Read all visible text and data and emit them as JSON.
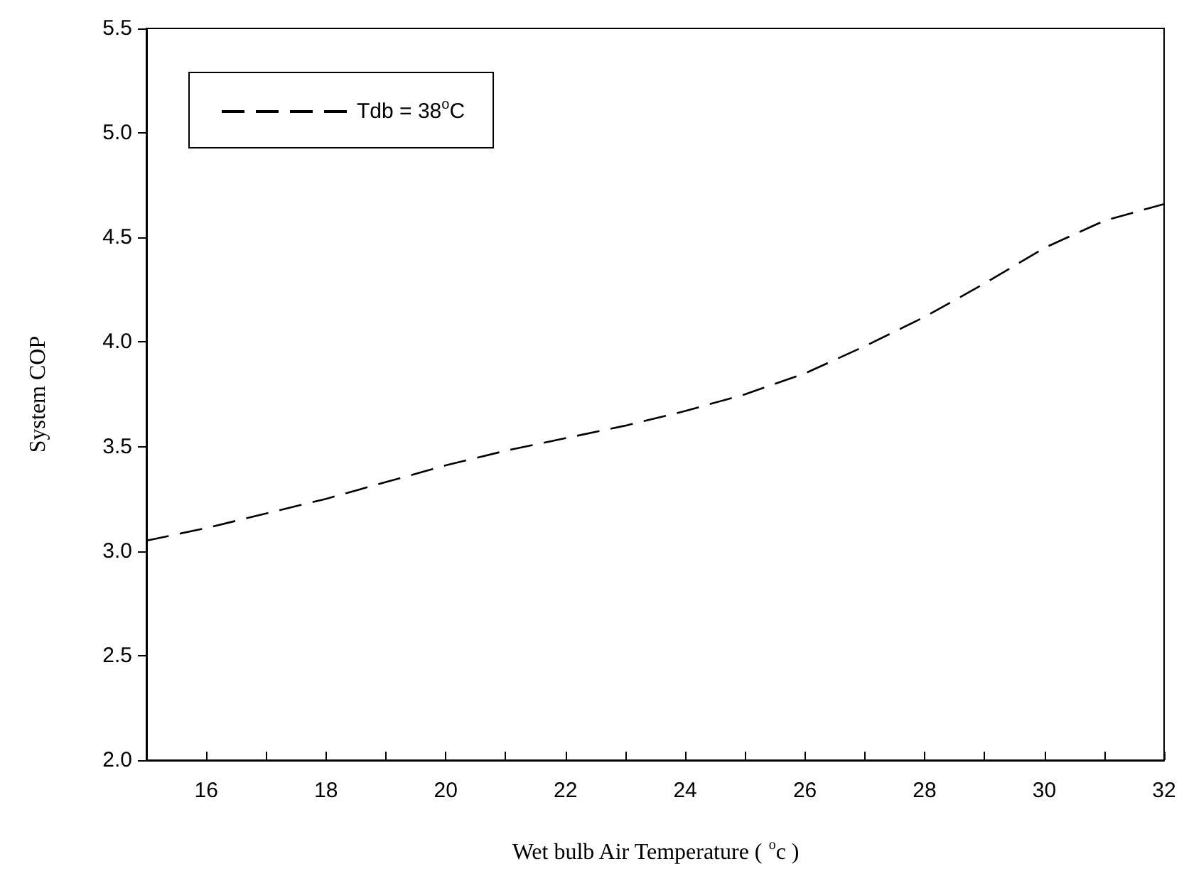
{
  "chart_data": {
    "type": "line",
    "xlabel": "Wet bulb Air Temperature ( $^{o}$c )",
    "ylabel": "System COP",
    "x": [
      15,
      16,
      17,
      18,
      19,
      20,
      21,
      22,
      23,
      24,
      25,
      26,
      27,
      28,
      29,
      30,
      31,
      32
    ],
    "series": [
      {
        "name": "Tdb = 38$^{o}$C",
        "color": "#000000",
        "values": [
          3.05,
          3.11,
          3.18,
          3.25,
          3.33,
          3.41,
          3.48,
          3.54,
          3.6,
          3.67,
          3.75,
          3.85,
          3.98,
          4.12,
          4.28,
          4.45,
          4.58,
          4.66
        ]
      }
    ],
    "xlim": [
      15,
      32
    ],
    "ylim": [
      2.0,
      5.5
    ],
    "xticks": [
      16,
      {
        "value": 17,
        "label": null
      },
      18,
      {
        "value": 19,
        "label": null
      },
      20,
      {
        "value": 21,
        "label": null
      },
      22,
      {
        "value": 23,
        "label": null
      },
      24,
      {
        "value": 25,
        "label": null
      },
      26,
      {
        "value": 27,
        "label": null
      },
      28,
      {
        "value": 29,
        "label": null
      },
      30,
      {
        "value": 31,
        "label": null
      },
      32
    ],
    "yticks": [
      {
        "value": 2.0,
        "label": "2.0"
      },
      {
        "value": 2.5,
        "label": "2.5"
      },
      {
        "value": 3.0,
        "label": "3.0"
      },
      {
        "value": 3.5,
        "label": "3.5"
      },
      {
        "value": 4.0,
        "label": "4.0"
      },
      {
        "value": 4.5,
        "label": "4.5"
      },
      {
        "value": 5.0,
        "label": "5.0"
      },
      {
        "value": 5.5,
        "label": "5.5"
      }
    ],
    "legend": "top left",
    "grid": false,
    "line_style": "dashed"
  }
}
